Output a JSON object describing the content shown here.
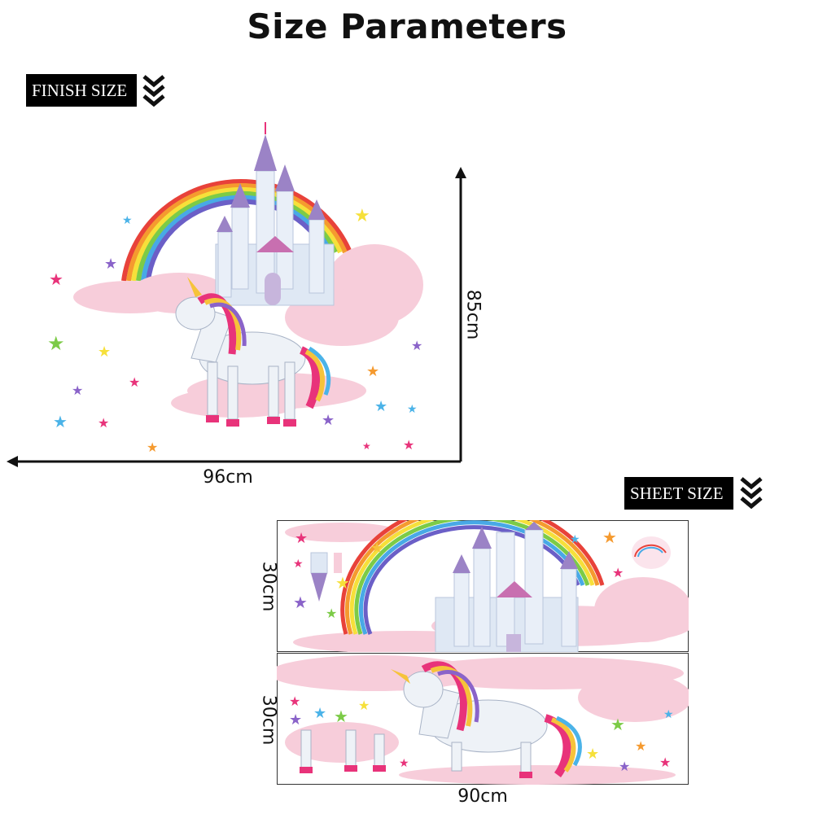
{
  "header": {
    "title": "Size Parameters"
  },
  "finish": {
    "tag_label": "FINISH SIZE",
    "width_label": "96cm",
    "height_label": "85cm"
  },
  "sheet": {
    "tag_label": "SHEET SIZE",
    "width_label": "90cm",
    "sheet1_height_label": "30cm",
    "sheet2_height_label": "30cm"
  },
  "icons": {
    "tag_arrow": "chevron-down-icon",
    "axis_arrow": "arrow-icon"
  },
  "colors": {
    "tag_bg": "#000000",
    "rainbow": [
      "#e8423a",
      "#f59a2f",
      "#f6e03a",
      "#7ccb47",
      "#48a9e6",
      "#6b5fc7"
    ],
    "cloud": "#f7cdda",
    "castle": "#dfe8f4",
    "roof": "#9b83c6",
    "mane": [
      "#e8337a",
      "#f6c33a",
      "#8a63c9",
      "#4bb3e8"
    ]
  }
}
